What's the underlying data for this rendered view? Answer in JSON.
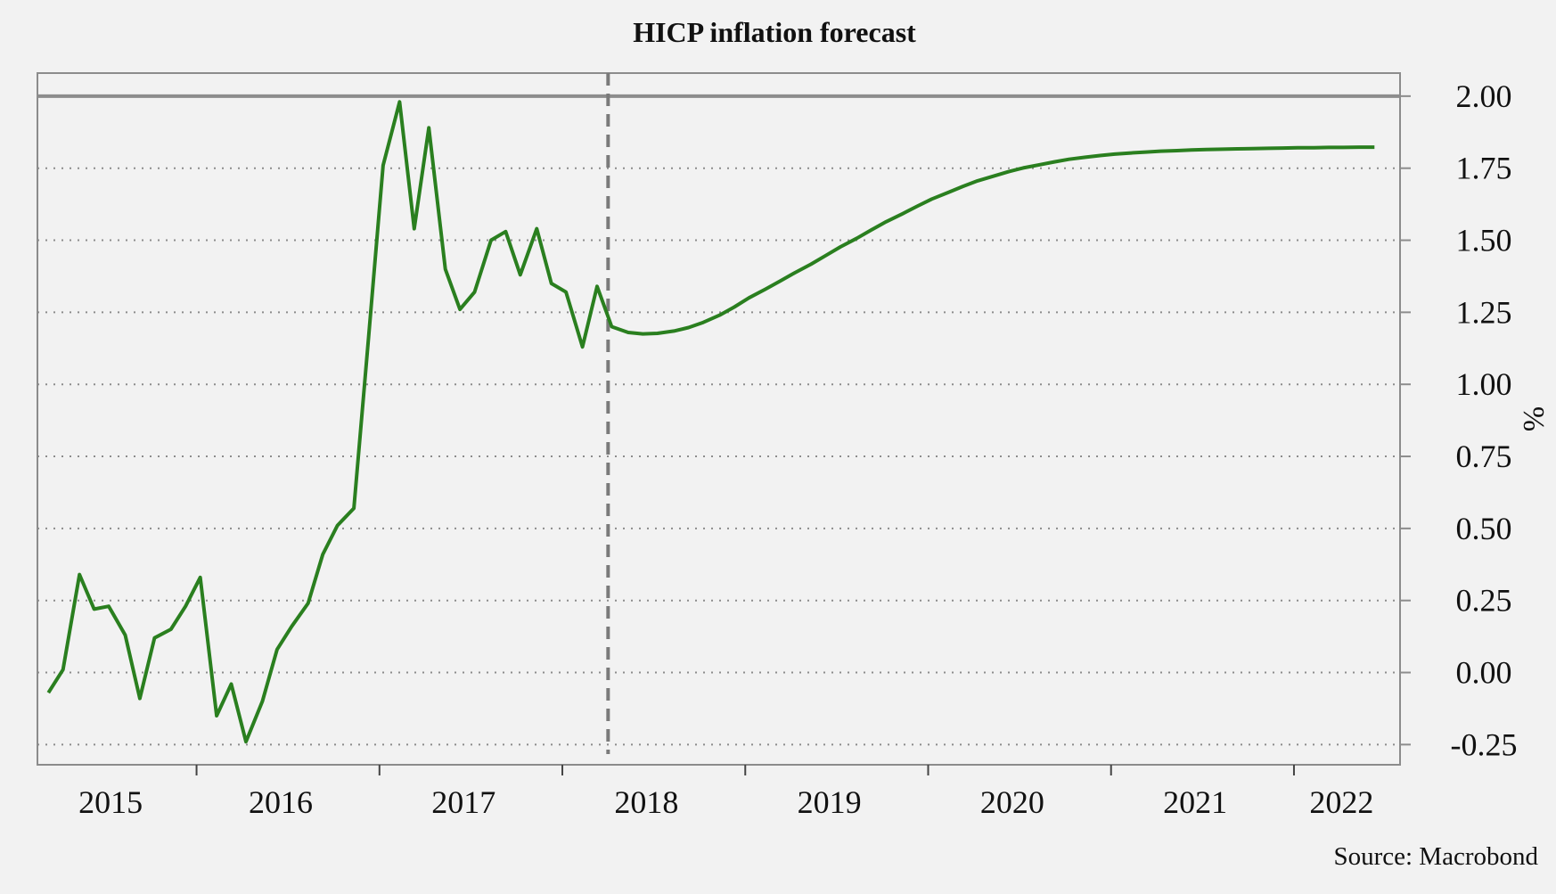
{
  "chart_data": {
    "type": "line",
    "title": "HICP inflation forecast",
    "xlabel": "",
    "ylabel": "%",
    "source": "Source: Macrobond",
    "ylim": [
      -0.32,
      2.08
    ],
    "xlim": [
      2014.8,
      2022.25
    ],
    "target_line": 2.0,
    "forecast_start": 2017.92,
    "yticks": [
      -0.25,
      0.0,
      0.25,
      0.5,
      0.75,
      1.0,
      1.25,
      1.5,
      1.75,
      2.0
    ],
    "ytick_labels": [
      "-0.25",
      "0.00",
      "0.25",
      "0.50",
      "0.75",
      "1.00",
      "1.25",
      "1.50",
      "1.75",
      "2.00"
    ],
    "xticks": [
      2015.67,
      2016.67,
      2017.67,
      2018.67,
      2019.67,
      2020.67,
      2021.67
    ],
    "xtick_labels": [
      {
        "label": "2015",
        "pos": 2015.2
      },
      {
        "label": "2016",
        "pos": 2016.13
      },
      {
        "label": "2017",
        "pos": 2017.13
      },
      {
        "label": "2018",
        "pos": 2018.13
      },
      {
        "label": "2019",
        "pos": 2019.13
      },
      {
        "label": "2020",
        "pos": 2020.13
      },
      {
        "label": "2021",
        "pos": 2021.13
      },
      {
        "label": "2022",
        "pos": 2021.93
      }
    ],
    "series": [
      {
        "name": "HICP inflation",
        "color": "#2a7f1f",
        "x": [
          2014.86,
          2014.94,
          2015.03,
          2015.11,
          2015.19,
          2015.28,
          2015.36,
          2015.44,
          2015.53,
          2015.61,
          2015.69,
          2015.78,
          2015.86,
          2015.94,
          2016.03,
          2016.11,
          2016.19,
          2016.28,
          2016.36,
          2016.44,
          2016.53,
          2016.61,
          2016.69,
          2016.78,
          2016.86,
          2016.94,
          2017.03,
          2017.11,
          2017.19,
          2017.28,
          2017.36,
          2017.44,
          2017.53,
          2017.61,
          2017.69,
          2017.78,
          2017.86,
          2017.94,
          2018.03,
          2018.11,
          2018.19,
          2018.28,
          2018.36,
          2018.44,
          2018.53,
          2018.61,
          2018.69,
          2018.78,
          2018.86,
          2018.94,
          2019.03,
          2019.11,
          2019.19,
          2019.28,
          2019.36,
          2019.44,
          2019.53,
          2019.61,
          2019.69,
          2019.78,
          2019.86,
          2019.94,
          2020.03,
          2020.11,
          2020.19,
          2020.28,
          2020.36,
          2020.44,
          2020.53,
          2020.61,
          2020.69,
          2020.78,
          2020.86,
          2020.94,
          2021.03,
          2021.11,
          2021.19,
          2021.28,
          2021.36,
          2021.44,
          2021.53,
          2021.61,
          2021.69,
          2021.78,
          2021.86,
          2021.94,
          2022.03,
          2022.11
        ],
        "values": [
          -0.07,
          0.01,
          0.34,
          0.22,
          0.23,
          0.13,
          -0.09,
          0.12,
          0.15,
          0.23,
          0.33,
          -0.15,
          -0.04,
          -0.24,
          -0.1,
          0.08,
          0.16,
          0.24,
          0.41,
          0.51,
          0.57,
          1.16,
          1.76,
          1.98,
          1.54,
          1.89,
          1.4,
          1.26,
          1.32,
          1.5,
          1.53,
          1.38,
          1.54,
          1.35,
          1.32,
          1.13,
          1.34,
          1.2,
          1.18,
          1.175,
          1.177,
          1.185,
          1.197,
          1.215,
          1.24,
          1.268,
          1.3,
          1.33,
          1.358,
          1.387,
          1.417,
          1.447,
          1.477,
          1.507,
          1.536,
          1.564,
          1.592,
          1.618,
          1.643,
          1.666,
          1.687,
          1.706,
          1.723,
          1.738,
          1.751,
          1.762,
          1.772,
          1.781,
          1.788,
          1.794,
          1.799,
          1.803,
          1.806,
          1.809,
          1.811,
          1.813,
          1.815,
          1.816,
          1.817,
          1.818,
          1.819,
          1.82,
          1.821,
          1.821,
          1.822,
          1.822,
          1.823,
          1.823
        ]
      }
    ]
  },
  "colors": {
    "line": "#2a7f1f",
    "target": "#8c8c8c",
    "forecast_divider": "#7a7a7a",
    "frame": "#8c8c8c",
    "grid": "#8c8c8c",
    "background": "#f2f2f2"
  }
}
